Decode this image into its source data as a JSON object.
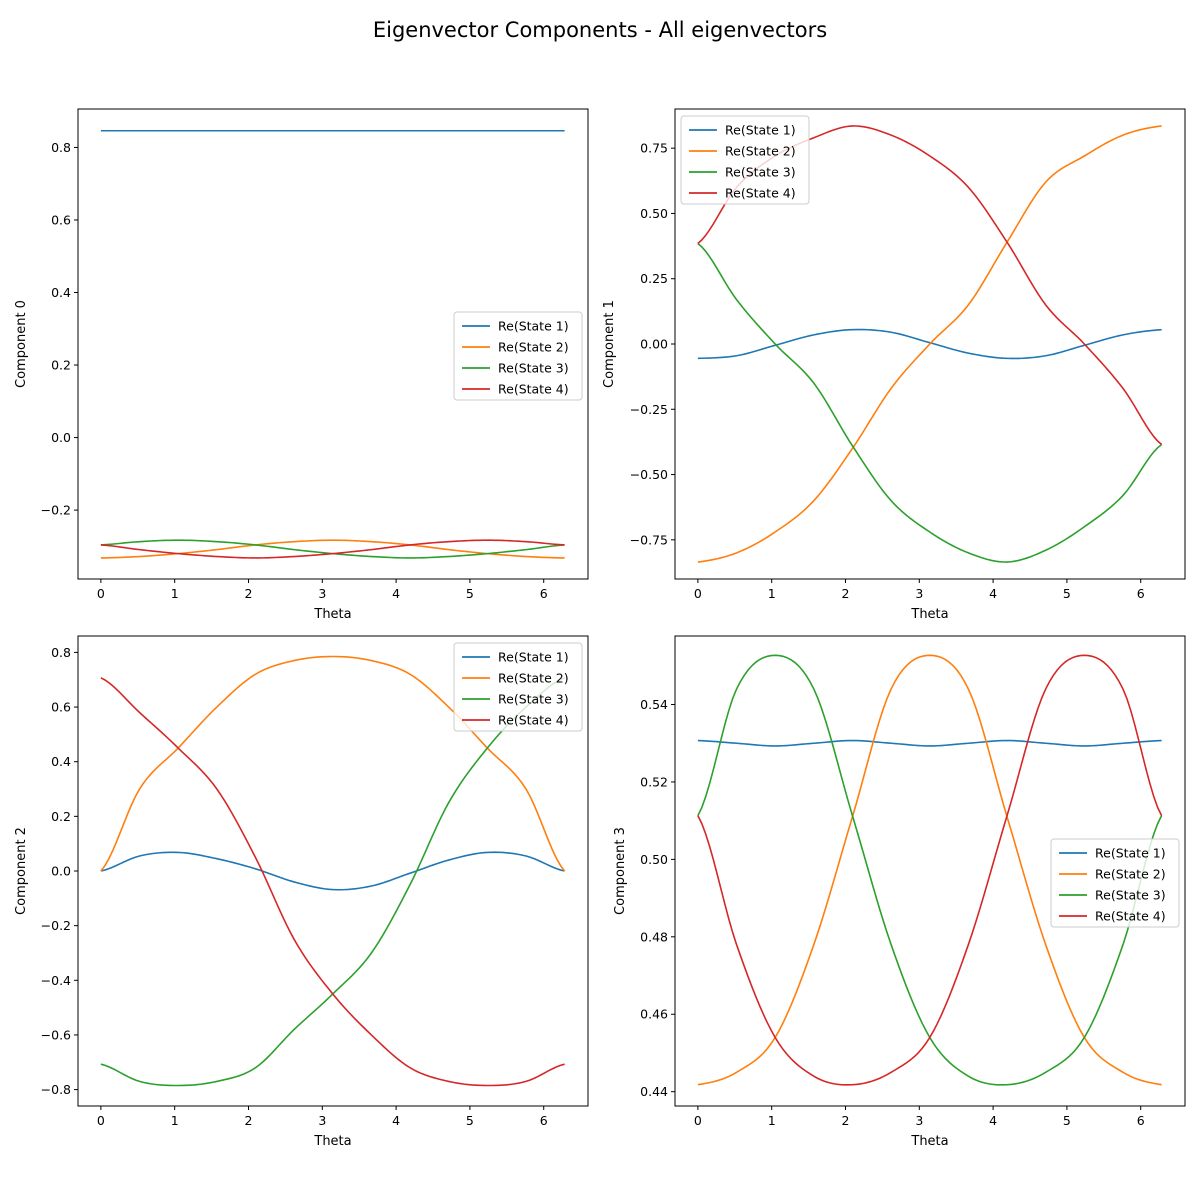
{
  "suptitle": "Eigenvector Components - All eigenvectors",
  "series_names": [
    "Re(State 1)",
    "Re(State 2)",
    "Re(State 3)",
    "Re(State 4)"
  ],
  "colors": [
    "#1f77b4",
    "#ff7f0e",
    "#2ca02c",
    "#d62728"
  ],
  "chart_data": [
    {
      "type": "line",
      "xlabel": "Theta",
      "ylabel": "Component 0",
      "xlim": [
        -0.31,
        6.6
      ],
      "ylim": [
        -0.39,
        0.906
      ],
      "xticks": [
        0,
        1,
        2,
        3,
        4,
        5,
        6
      ],
      "yticks": [
        -0.2,
        0.0,
        0.2,
        0.4,
        0.6,
        0.8
      ],
      "ytick_labels": [
        "−0.2",
        "0.0",
        "0.2",
        "0.4",
        "0.6",
        "0.8"
      ],
      "legend": "center-right",
      "x": [
        0,
        0.524,
        1.047,
        1.571,
        2.094,
        2.618,
        3.142,
        3.665,
        4.189,
        4.712,
        5.236,
        5.76,
        6.283
      ],
      "series": [
        {
          "name": "Re(State 1)",
          "values": [
            0.846,
            0.846,
            0.846,
            0.846,
            0.846,
            0.846,
            0.846,
            0.846,
            0.846,
            0.846,
            0.846,
            0.846,
            0.846
          ]
        },
        {
          "name": "Re(State 2)",
          "values": [
            -0.332,
            -0.328,
            -0.32,
            -0.309,
            -0.296,
            -0.287,
            -0.283,
            -0.287,
            -0.296,
            -0.309,
            -0.32,
            -0.328,
            -0.332
          ]
        },
        {
          "name": "Re(State 3)",
          "values": [
            -0.296,
            -0.287,
            -0.283,
            -0.287,
            -0.296,
            -0.309,
            -0.32,
            -0.328,
            -0.332,
            -0.328,
            -0.32,
            -0.309,
            -0.296
          ]
        },
        {
          "name": "Re(State 4)",
          "values": [
            -0.296,
            -0.309,
            -0.32,
            -0.328,
            -0.332,
            -0.328,
            -0.32,
            -0.309,
            -0.296,
            -0.287,
            -0.283,
            -0.287,
            -0.296
          ]
        }
      ]
    },
    {
      "type": "line",
      "xlabel": "Theta",
      "ylabel": "Component 1",
      "xlim": [
        -0.31,
        6.6
      ],
      "ylim": [
        -0.9,
        0.9
      ],
      "xticks": [
        0,
        1,
        2,
        3,
        4,
        5,
        6
      ],
      "yticks": [
        -0.75,
        -0.5,
        -0.25,
        0.0,
        0.25,
        0.5,
        0.75
      ],
      "ytick_labels": [
        "−0.75",
        "−0.50",
        "−0.25",
        "0.00",
        "0.25",
        "0.50",
        "0.75"
      ],
      "legend": "upper-left",
      "x": [
        0,
        0.524,
        1.047,
        1.571,
        2.094,
        2.618,
        3.142,
        3.665,
        4.189,
        4.712,
        5.236,
        5.76,
        6.283
      ],
      "series": [
        {
          "name": "Re(State 1)",
          "values": [
            -0.055,
            -0.045,
            -0.005,
            0.035,
            0.055,
            0.045,
            0.005,
            -0.035,
            -0.055,
            -0.045,
            -0.005,
            0.035,
            0.055
          ]
        },
        {
          "name": "Re(State 2)",
          "values": [
            -0.835,
            -0.8,
            -0.72,
            -0.6,
            -0.4,
            -0.17,
            0.0,
            0.15,
            0.39,
            0.62,
            0.72,
            0.8,
            0.835
          ]
        },
        {
          "name": "Re(State 3)",
          "values": [
            0.385,
            0.17,
            0.0,
            -0.15,
            -0.39,
            -0.6,
            -0.72,
            -0.8,
            -0.835,
            -0.79,
            -0.7,
            -0.58,
            -0.385
          ]
        },
        {
          "name": "Re(State 4)",
          "values": [
            0.385,
            0.6,
            0.72,
            0.79,
            0.835,
            0.8,
            0.72,
            0.6,
            0.39,
            0.15,
            0.0,
            -0.17,
            -0.385
          ]
        }
      ]
    },
    {
      "type": "line",
      "xlabel": "Theta",
      "ylabel": "Component 2",
      "xlim": [
        -0.31,
        6.6
      ],
      "ylim": [
        -0.86,
        0.86
      ],
      "xticks": [
        0,
        1,
        2,
        3,
        4,
        5,
        6
      ],
      "yticks": [
        -0.8,
        -0.6,
        -0.4,
        -0.2,
        0.0,
        0.2,
        0.4,
        0.6,
        0.8
      ],
      "ytick_labels": [
        "−0.8",
        "−0.6",
        "−0.4",
        "−0.2",
        "0.0",
        "0.2",
        "0.4",
        "0.6",
        "0.8"
      ],
      "legend": "upper-right",
      "x": [
        0,
        0.524,
        1.047,
        1.571,
        2.094,
        2.618,
        3.142,
        3.665,
        4.189,
        4.712,
        5.236,
        5.76,
        6.283
      ],
      "series": [
        {
          "name": "Re(State 1)",
          "values": [
            0.0,
            0.055,
            0.068,
            0.045,
            0.008,
            -0.04,
            -0.068,
            -0.055,
            -0.008,
            0.04,
            0.068,
            0.055,
            0.0
          ]
        },
        {
          "name": "Re(State 2)",
          "values": [
            0.0,
            0.3,
            0.45,
            0.6,
            0.72,
            0.77,
            0.785,
            0.77,
            0.72,
            0.6,
            0.45,
            0.3,
            0.0
          ]
        },
        {
          "name": "Re(State 3)",
          "values": [
            -0.707,
            -0.77,
            -0.785,
            -0.77,
            -0.72,
            -0.58,
            -0.45,
            -0.3,
            -0.05,
            0.25,
            0.45,
            0.6,
            0.707
          ]
        },
        {
          "name": "Re(State 4)",
          "values": [
            0.707,
            0.58,
            0.45,
            0.3,
            0.05,
            -0.25,
            -0.45,
            -0.6,
            -0.72,
            -0.77,
            -0.785,
            -0.77,
            -0.707
          ]
        }
      ]
    },
    {
      "type": "line",
      "xlabel": "Theta",
      "ylabel": "Component 3",
      "xlim": [
        -0.31,
        6.6
      ],
      "ylim": [
        0.4363,
        0.5577
      ],
      "xticks": [
        0,
        1,
        2,
        3,
        4,
        5,
        6
      ],
      "yticks": [
        0.44,
        0.46,
        0.48,
        0.5,
        0.52,
        0.54
      ],
      "ytick_labels": [
        "0.44",
        "0.46",
        "0.48",
        "0.50",
        "0.52",
        "0.54"
      ],
      "legend": "center-right",
      "x": [
        0,
        0.524,
        1.047,
        1.571,
        2.094,
        2.618,
        3.142,
        3.665,
        4.189,
        4.712,
        5.236,
        5.76,
        6.283
      ],
      "series": [
        {
          "name": "Re(State 1)",
          "values": [
            0.5307,
            0.53,
            0.5293,
            0.53,
            0.5307,
            0.53,
            0.5293,
            0.53,
            0.5307,
            0.53,
            0.5293,
            0.53,
            0.5307
          ]
        },
        {
          "name": "Re(State 2)",
          "values": [
            0.4418,
            0.445,
            0.454,
            0.478,
            0.511,
            0.544,
            0.5527,
            0.544,
            0.511,
            0.478,
            0.454,
            0.445,
            0.4418
          ]
        },
        {
          "name": "Re(State 3)",
          "values": [
            0.5113,
            0.544,
            0.5527,
            0.544,
            0.5113,
            0.478,
            0.454,
            0.444,
            0.4418,
            0.445,
            0.454,
            0.478,
            0.5113
          ]
        },
        {
          "name": "Re(State 4)",
          "values": [
            0.5113,
            0.478,
            0.454,
            0.444,
            0.4418,
            0.445,
            0.454,
            0.478,
            0.5113,
            0.544,
            0.5527,
            0.544,
            0.5113
          ]
        }
      ]
    }
  ]
}
